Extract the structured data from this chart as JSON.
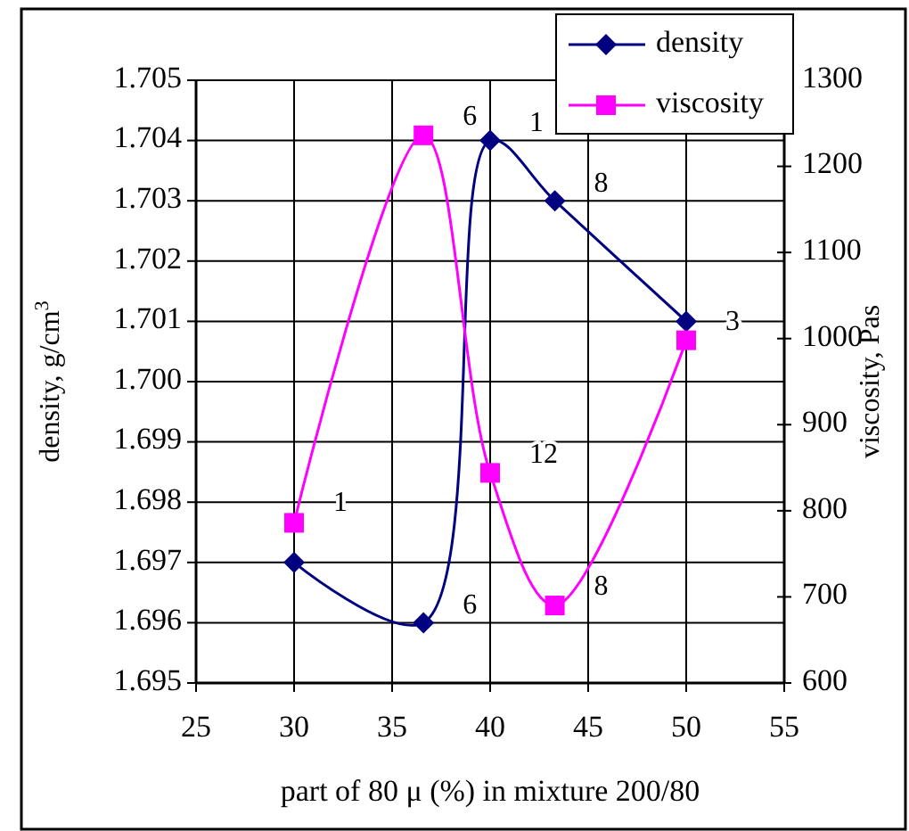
{
  "chart_data": {
    "type": "line",
    "xlabel": "part of 80 μ (%) in mixture 200/80",
    "ylabel": "density, g/cm$^{3}$",
    "y2label": "viscosity, Pas",
    "x": [
      30,
      36.6,
      40,
      43.3,
      50
    ],
    "xlim": [
      25,
      55
    ],
    "xticks": [
      25,
      30,
      35,
      40,
      45,
      50,
      55
    ],
    "ylim": [
      1.695,
      1.705
    ],
    "yticks": [
      {
        "value": 1.695,
        "label": "1.695"
      },
      {
        "value": 1.696,
        "label": "1.696"
      },
      {
        "value": 1.697,
        "label": "1.697"
      },
      {
        "value": 1.698,
        "label": "1.698"
      },
      {
        "value": 1.699,
        "label": "1.699"
      },
      {
        "value": 1.7,
        "label": "1.700"
      },
      {
        "value": 1.701,
        "label": "1.701"
      },
      {
        "value": 1.702,
        "label": "1.702"
      },
      {
        "value": 1.703,
        "label": "1.703"
      },
      {
        "value": 1.704,
        "label": "1.704"
      },
      {
        "value": 1.705,
        "label": "1.705"
      }
    ],
    "y2lim": [
      600,
      1300
    ],
    "y2ticks": [
      600,
      700,
      800,
      900,
      1000,
      1100,
      1200,
      1300
    ],
    "grid": true,
    "legend": "top right",
    "annotations": [
      {
        "text": "6",
        "x": 36.6,
        "y": 1.696
      },
      {
        "text": "1",
        "x": 40,
        "y": 1.704
      },
      {
        "text": "8",
        "x": 43.3,
        "y": 1.703
      },
      {
        "text": "1",
        "x": 30,
        "y": 1.6977
      },
      {
        "text": "6",
        "x": 36.6,
        "y": 1.7041
      },
      {
        "text": "12",
        "x": 40,
        "y": 1.6985
      },
      {
        "text": "8",
        "x": 43.3,
        "y": 1.6963
      },
      {
        "text": "3",
        "x": 50,
        "y": 1.7007
      }
    ],
    "series": [
      {
        "name": "density",
        "color": "#000080",
        "marker": "diamond",
        "values": [
          1.697,
          1.696,
          1.704,
          1.703,
          1.701
        ]
      },
      {
        "name": "viscosity",
        "color": "#ff00ff",
        "marker": "square",
        "axis": "y2",
        "values": [
          786,
          1236,
          844,
          690,
          998
        ]
      }
    ]
  }
}
